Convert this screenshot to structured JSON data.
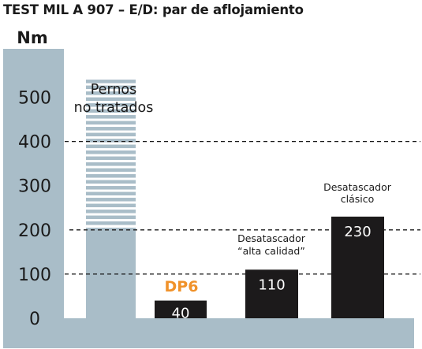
{
  "title": "TEST MIL A 907 – E/D: par de aflojamiento",
  "colors": {
    "panel": "#a9bdc8",
    "bar": "#1c1a1b",
    "untreated": "#a9bdc8",
    "highlight": "#f0922a",
    "text": "#1a1a1a",
    "gridline": "#1a1a1a"
  },
  "chart_data": {
    "type": "bar",
    "title": "TEST MIL A 907 – E/D: par de aflojamiento",
    "ylabel": "Nm",
    "ylim": [
      0,
      550
    ],
    "yticks": [
      0,
      100,
      200,
      300,
      400,
      500
    ],
    "dashed_gridlines": [
      100,
      200,
      400
    ],
    "categories": [
      "Pernos no tratados",
      "DP6",
      "Desatascador “alta calidad”",
      "Desatascador clásico"
    ],
    "values": [
      540,
      40,
      110,
      230
    ],
    "value_labels": [
      "",
      "40",
      "110",
      "230"
    ],
    "category_labels": [
      [
        "Pernos",
        "no tratados"
      ],
      [
        "DP6"
      ],
      [
        "Desatascador",
        "“alta calidad”"
      ],
      [
        "Desatascador",
        "clásico"
      ]
    ],
    "notes": {
      "untreated_solid_to": 205,
      "untreated_pattern": "horizontal stripes above solid part"
    }
  }
}
